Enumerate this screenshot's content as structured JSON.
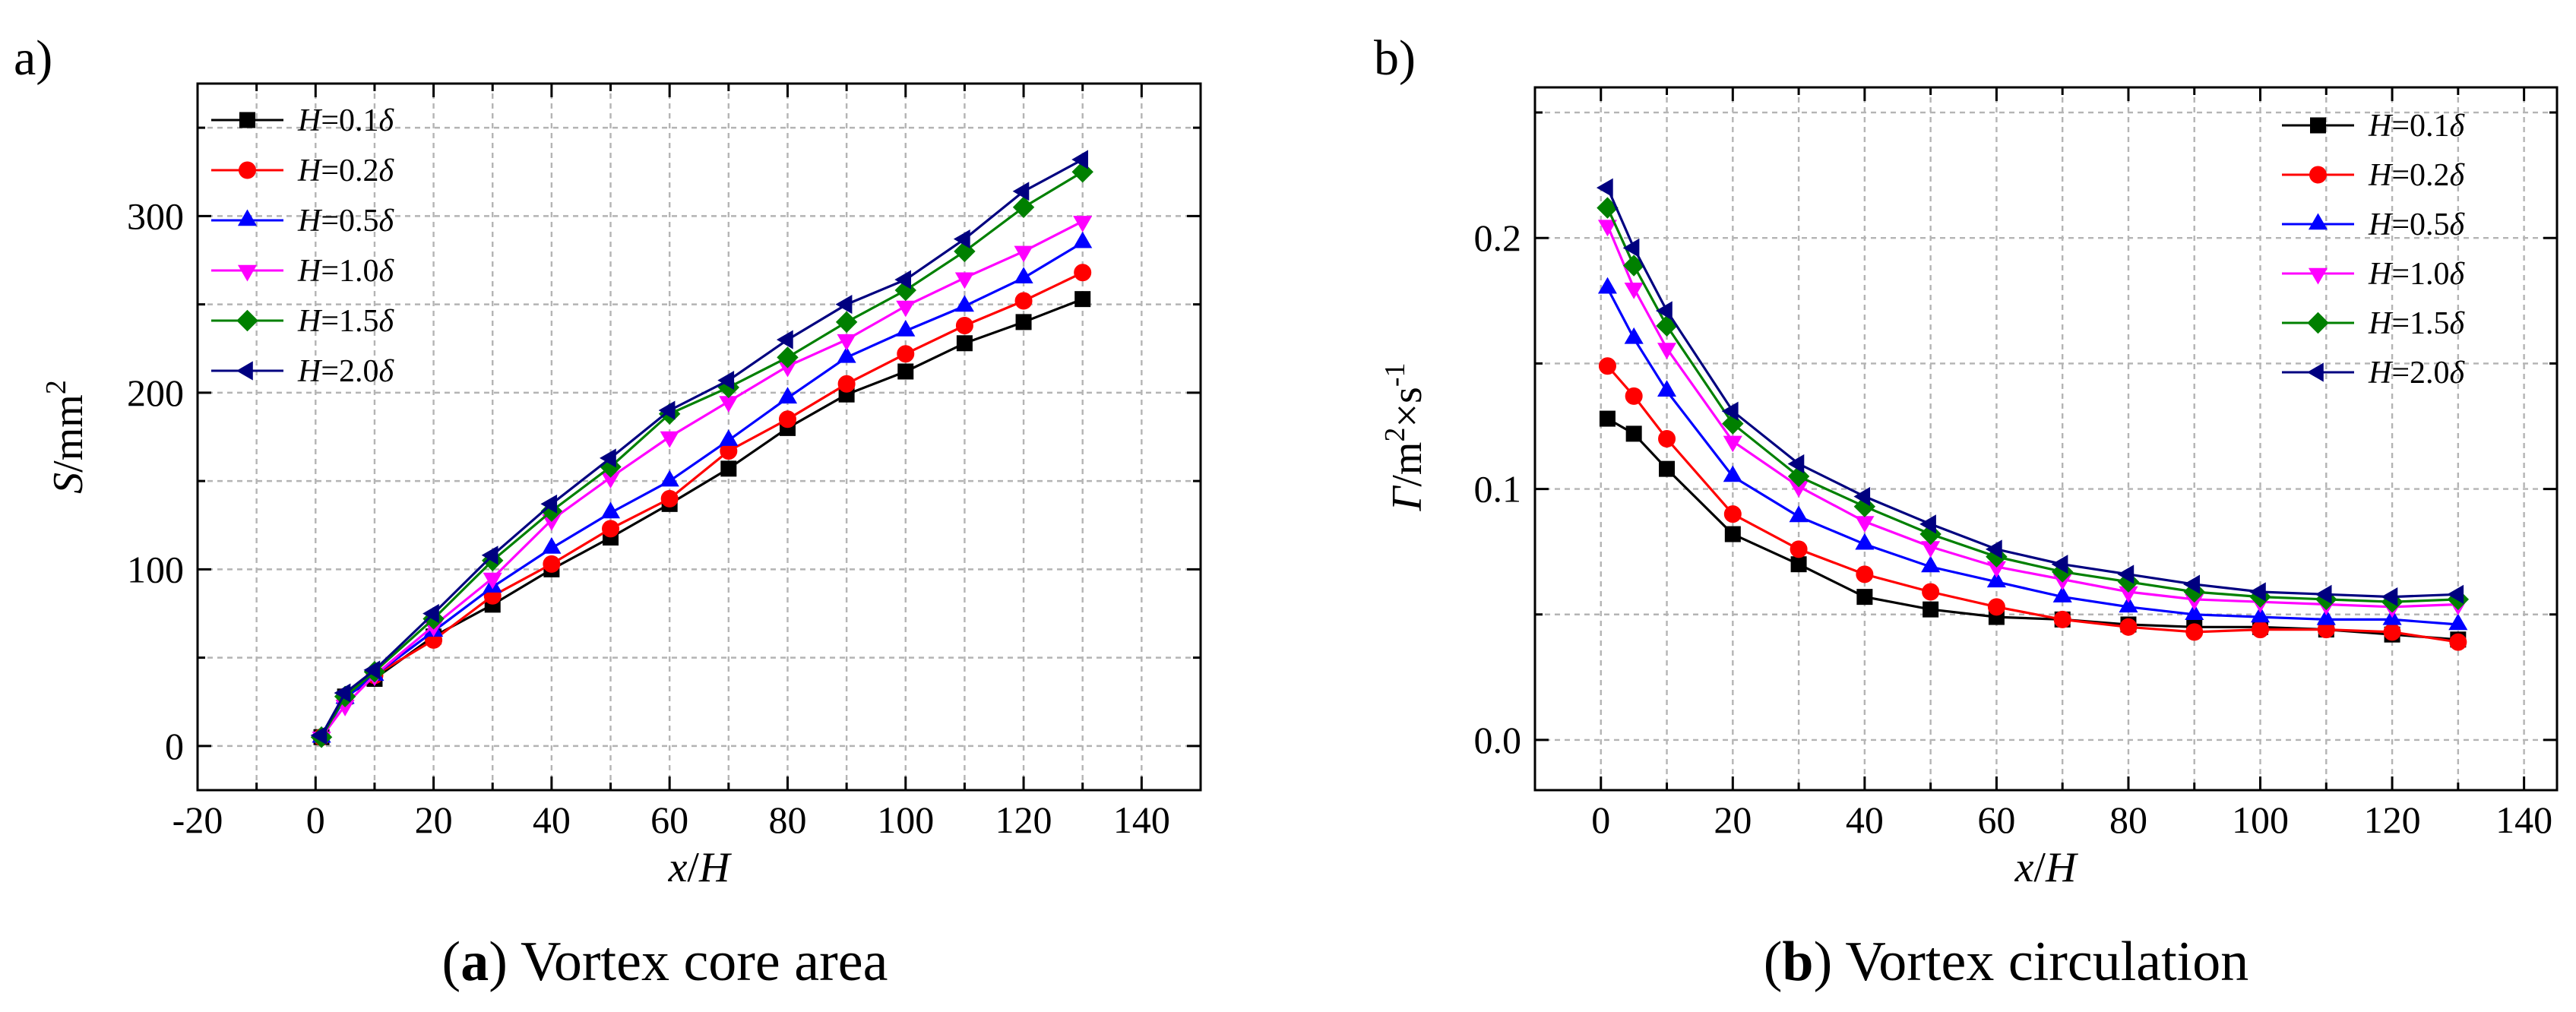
{
  "chart_data": [
    {
      "type": "line",
      "panel_label": "a)",
      "caption_bold": "a",
      "caption": "Vortex core area",
      "ylabel_italic": "S",
      "ylabel_rest": "/mm",
      "ylabel_sup": "2",
      "xlabel_italic1": "x",
      "xlabel_slash": "/",
      "xlabel_italic2": "H",
      "xlim": [
        -20,
        150
      ],
      "ylim": [
        -25,
        375
      ],
      "xticks": [
        "-20",
        "0",
        "20",
        "40",
        "60",
        "80",
        "100",
        "120",
        "140"
      ],
      "xtick_values": [
        -20,
        0,
        20,
        40,
        60,
        80,
        100,
        120,
        140
      ],
      "yticks": [
        "0",
        "100",
        "200",
        "300"
      ],
      "ytick_values": [
        0,
        100,
        200,
        300
      ],
      "grid": true,
      "legend_position": "top-left",
      "x": [
        1,
        5,
        10,
        20,
        30,
        40,
        50,
        60,
        70,
        80,
        90,
        100,
        110,
        120,
        130
      ],
      "series": [
        {
          "name_italic": "H",
          "name_rest": "=0.1",
          "name_delta": "δ",
          "color": "#000000",
          "marker": "square",
          "values": [
            5,
            28,
            38,
            62,
            80,
            100,
            118,
            137,
            157,
            180,
            199,
            212,
            228,
            240,
            253
          ]
        },
        {
          "name_italic": "H",
          "name_rest": "=0.2",
          "name_delta": "δ",
          "color": "#ff0000",
          "marker": "circle",
          "values": [
            5,
            28,
            40,
            60,
            85,
            103,
            123,
            140,
            167,
            185,
            205,
            222,
            238,
            252,
            268
          ]
        },
        {
          "name_italic": "H",
          "name_rest": "=0.5",
          "name_delta": "δ",
          "color": "#0000ff",
          "marker": "triangle-up",
          "values": [
            5,
            27,
            40,
            65,
            90,
            112,
            132,
            150,
            173,
            197,
            220,
            235,
            249,
            265,
            285
          ]
        },
        {
          "name_italic": "H",
          "name_rest": "=1.0",
          "name_delta": "δ",
          "color": "#ff00ff",
          "marker": "triangle-down",
          "values": [
            5,
            23,
            40,
            68,
            95,
            128,
            152,
            175,
            195,
            215,
            230,
            249,
            265,
            280,
            297
          ]
        },
        {
          "name_italic": "H",
          "name_rest": "=1.5",
          "name_delta": "δ",
          "color": "#008000",
          "marker": "diamond",
          "values": [
            5,
            28,
            42,
            72,
            105,
            133,
            158,
            188,
            203,
            220,
            240,
            258,
            280,
            305,
            325
          ]
        },
        {
          "name_italic": "H",
          "name_rest": "=2.0",
          "name_delta": "δ",
          "color": "#000080",
          "marker": "triangle-left",
          "values": [
            6,
            30,
            43,
            75,
            108,
            137,
            163,
            190,
            207,
            230,
            250,
            264,
            287,
            314,
            332
          ]
        }
      ]
    },
    {
      "type": "line",
      "panel_label": "b)",
      "caption_bold": "b",
      "caption": "Vortex circulation",
      "ylabel_italic": "Γ",
      "ylabel_rest": "/m",
      "ylabel_sup": "2",
      "ylabel_mid": "×s",
      "ylabel_sup2": "-1",
      "xlabel_italic1": "x",
      "xlabel_slash": "/",
      "xlabel_italic2": "H",
      "xlim": [
        -10,
        145
      ],
      "ylim": [
        -0.02,
        0.26
      ],
      "xticks": [
        "0",
        "20",
        "40",
        "60",
        "80",
        "100",
        "120",
        "140"
      ],
      "xtick_values": [
        0,
        20,
        40,
        60,
        80,
        100,
        120,
        140
      ],
      "yticks": [
        "0.0",
        "0.1",
        "0.2"
      ],
      "ytick_values": [
        0,
        0.1,
        0.2
      ],
      "grid": true,
      "legend_position": "top-right",
      "x": [
        1,
        5,
        10,
        20,
        30,
        40,
        50,
        60,
        70,
        80,
        90,
        100,
        110,
        120,
        130
      ],
      "series": [
        {
          "name_italic": "H",
          "name_rest": "=0.1",
          "name_delta": "δ",
          "color": "#000000",
          "marker": "square",
          "values": [
            0.128,
            0.122,
            0.108,
            0.082,
            0.07,
            0.057,
            0.052,
            0.049,
            0.048,
            0.046,
            0.045,
            0.045,
            0.044,
            0.042,
            0.04
          ]
        },
        {
          "name_italic": "H",
          "name_rest": "=0.2",
          "name_delta": "δ",
          "color": "#ff0000",
          "marker": "circle",
          "values": [
            0.149,
            0.137,
            0.12,
            0.09,
            0.076,
            0.066,
            0.059,
            0.053,
            0.048,
            0.045,
            0.043,
            0.044,
            0.044,
            0.043,
            0.039
          ]
        },
        {
          "name_italic": "H",
          "name_rest": "=0.5",
          "name_delta": "δ",
          "color": "#0000ff",
          "marker": "triangle-up",
          "values": [
            0.18,
            0.16,
            0.139,
            0.105,
            0.089,
            0.078,
            0.069,
            0.063,
            0.057,
            0.053,
            0.05,
            0.049,
            0.048,
            0.048,
            0.046
          ]
        },
        {
          "name_italic": "H",
          "name_rest": "=1.0",
          "name_delta": "δ",
          "color": "#ff00ff",
          "marker": "triangle-down",
          "values": [
            0.205,
            0.18,
            0.156,
            0.119,
            0.101,
            0.087,
            0.077,
            0.069,
            0.064,
            0.059,
            0.056,
            0.055,
            0.054,
            0.053,
            0.054
          ]
        },
        {
          "name_italic": "H",
          "name_rest": "=1.5",
          "name_delta": "δ",
          "color": "#008000",
          "marker": "diamond",
          "values": [
            0.212,
            0.189,
            0.165,
            0.126,
            0.105,
            0.093,
            0.082,
            0.073,
            0.067,
            0.063,
            0.059,
            0.057,
            0.056,
            0.055,
            0.056
          ]
        },
        {
          "name_italic": "H",
          "name_rest": "=2.0",
          "name_delta": "δ",
          "color": "#000080",
          "marker": "triangle-left",
          "values": [
            0.22,
            0.196,
            0.171,
            0.131,
            0.11,
            0.097,
            0.086,
            0.076,
            0.07,
            0.066,
            0.062,
            0.059,
            0.058,
            0.057,
            0.058
          ]
        }
      ]
    }
  ]
}
